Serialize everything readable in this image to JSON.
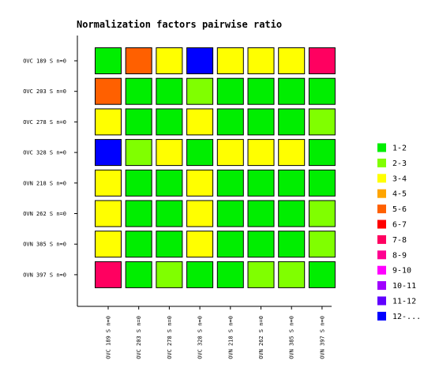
{
  "chart_data": {
    "type": "heatmap",
    "title": "Normalization factors pairwise ratio",
    "rows": [
      "OVC 189 S n=0",
      "OVC 203 S n=0",
      "OVC 278 S n=0",
      "OVC 328 S n=0",
      "OVN 218 S n=0",
      "OVN 262 S n=0",
      "OVN 385 S n=0",
      "OVN 397 S n=0"
    ],
    "columns": [
      "OVC 189 S n=0",
      "OVC 203 S n=0",
      "OVC 278 S n=0",
      "OVC 328 S n=0",
      "OVN 218 S n=0",
      "OVN 262 S n=0",
      "OVN 385 S n=0",
      "OVN 397 S n=0"
    ],
    "legend": [
      {
        "name": "1-2",
        "color": "#00ee00"
      },
      {
        "name": "2-3",
        "color": "#80ff00"
      },
      {
        "name": "3-4",
        "color": "#ffff00"
      },
      {
        "name": "4-5",
        "color": "#ffa500"
      },
      {
        "name": "5-6",
        "color": "#ff6000"
      },
      {
        "name": "6-7",
        "color": "#ff0000"
      },
      {
        "name": "7-8",
        "color": "#ff0060"
      },
      {
        "name": "8-9",
        "color": "#ff0090"
      },
      {
        "name": "9-10",
        "color": "#ff00ff"
      },
      {
        "name": "10-11",
        "color": "#a000ff"
      },
      {
        "name": "11-12",
        "color": "#6000ff"
      },
      {
        "name": "12-...",
        "color": "#0000ff"
      }
    ],
    "cells": [
      [
        "1-2",
        "5-6",
        "3-4",
        "12-...",
        "3-4",
        "3-4",
        "3-4",
        "7-8"
      ],
      [
        "5-6",
        "1-2",
        "1-2",
        "2-3",
        "1-2",
        "1-2",
        "1-2",
        "1-2"
      ],
      [
        "3-4",
        "1-2",
        "1-2",
        "3-4",
        "1-2",
        "1-2",
        "1-2",
        "2-3"
      ],
      [
        "12-...",
        "2-3",
        "3-4",
        "1-2",
        "3-4",
        "3-4",
        "3-4",
        "1-2"
      ],
      [
        "3-4",
        "1-2",
        "1-2",
        "3-4",
        "1-2",
        "1-2",
        "1-2",
        "1-2"
      ],
      [
        "3-4",
        "1-2",
        "1-2",
        "3-4",
        "1-2",
        "1-2",
        "1-2",
        "2-3"
      ],
      [
        "3-4",
        "1-2",
        "1-2",
        "3-4",
        "1-2",
        "1-2",
        "1-2",
        "2-3"
      ],
      [
        "7-8",
        "1-2",
        "2-3",
        "1-2",
        "1-2",
        "2-3",
        "2-3",
        "1-2"
      ]
    ]
  }
}
